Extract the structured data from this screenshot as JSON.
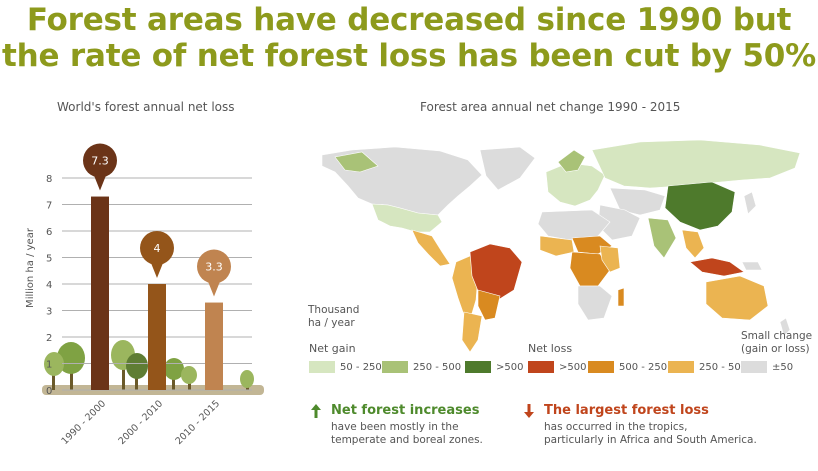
{
  "title_line1": "Forest areas have decreased since 1990 but",
  "title_line2": "the rate of net forest loss has been cut by 50%",
  "bar_subtitle": "World's forest annual net loss",
  "map_subtitle": "Forest area annual net change 1990 - 2015",
  "chart_data": {
    "type": "bar",
    "title": "World's forest annual net loss",
    "ylabel": "Million ha / year",
    "categories": [
      "1990 - 2000",
      "2000 - 2010",
      "2010 - 2015"
    ],
    "values": [
      7.3,
      4,
      3.3
    ],
    "data_labels": [
      "7.3",
      "4",
      "3.3"
    ],
    "ylim": [
      0,
      8
    ],
    "yticks": [
      0,
      1,
      2,
      3,
      4,
      5,
      6,
      7,
      8
    ],
    "grid": true,
    "colors": [
      "#6b3418",
      "#94551a",
      "#c08450"
    ]
  },
  "legend": {
    "unit_line1": "Thousand",
    "unit_line2": "ha / year",
    "gain_label": "Net gain",
    "loss_label": "Net loss",
    "small_line1": "Small change",
    "small_line2": "(gain or loss)",
    "items": [
      {
        "label": "50 - 250",
        "color": "#d6e6c0"
      },
      {
        "label": "250 - 500",
        "color": "#a9c277"
      },
      {
        "label": ">500",
        "color": "#4e7a2c"
      },
      {
        "label": ">500",
        "color": "#c0451c"
      },
      {
        "label": "500 - 250",
        "color": "#d98a20"
      },
      {
        "label": "250 - 50",
        "color": "#ebb451"
      },
      {
        "label": "±50",
        "color": "#dcdcdc"
      }
    ]
  },
  "notes": {
    "increase_icon": "arrow-up-icon",
    "increase_title": "Net forest increases",
    "increase_line1": "have been mostly in the",
    "increase_line2": "temperate and boreal zones.",
    "loss_icon": "arrow-down-icon",
    "loss_title": "The largest forest loss",
    "loss_line1": "has occurred in the tropics,",
    "loss_line2": "particularly in Africa and South America."
  },
  "colors": {
    "title": "#8d9a1c",
    "gain_accent": "#4e8a2c",
    "loss_accent": "#c0451c"
  }
}
